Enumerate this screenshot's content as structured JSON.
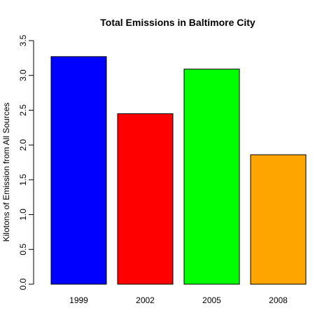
{
  "chart_data": {
    "type": "bar",
    "title": "Total Emissions in Baltimore City",
    "xlabel": "",
    "ylabel": "Kilotons of Emission from All Sources",
    "categories": [
      "1999",
      "2002",
      "2005",
      "2008"
    ],
    "values": [
      3.27,
      2.45,
      3.09,
      1.86
    ],
    "colors": [
      "#0000ff",
      "#ff0000",
      "#00ff00",
      "#ffa500"
    ],
    "ylim": [
      0,
      3.5
    ],
    "yticks": [
      "0.0",
      "0.5",
      "1.0",
      "1.5",
      "2.0",
      "2.5",
      "3.0",
      "3.5"
    ],
    "grid": false,
    "legend": "none"
  }
}
